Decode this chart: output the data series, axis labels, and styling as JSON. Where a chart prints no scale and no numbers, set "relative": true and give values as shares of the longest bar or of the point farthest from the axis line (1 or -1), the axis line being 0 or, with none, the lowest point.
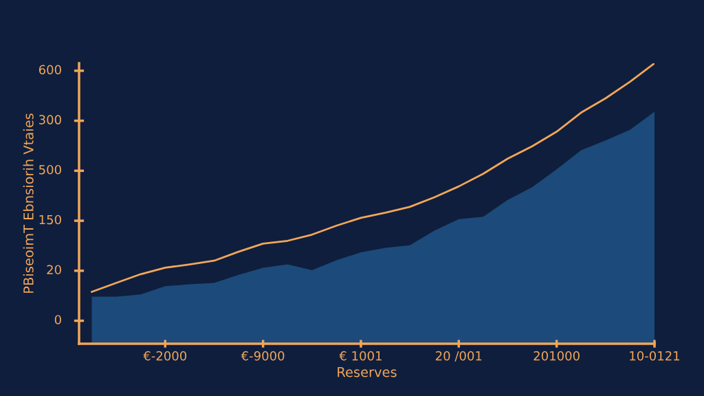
{
  "chart_data": {
    "type": "line",
    "xlabel": "Reserves",
    "ylabel": "PBiseoimT Ebnsiorih Vtaies",
    "relative": true,
    "annotations": [
      "0",
      "20",
      "150",
      "500",
      "300",
      "600"
    ],
    "categories": [
      null,
      null,
      null,
      "€-2000",
      null,
      null,
      null,
      "€-9000",
      null,
      null,
      null,
      "€ 1001",
      null,
      null,
      null,
      "20 /001",
      null,
      null,
      null,
      "201000",
      null,
      null,
      null,
      "10-0121"
    ],
    "grid": false,
    "series": [
      {
        "type": "area",
        "color": "#1c4a7a",
        "values": [
          0.168,
          0.168,
          0.176,
          0.205,
          0.212,
          0.217,
          0.246,
          0.271,
          0.283,
          0.262,
          0.298,
          0.326,
          0.342,
          0.351,
          0.403,
          0.444,
          0.453,
          0.513,
          0.558,
          0.622,
          0.69,
          0.725,
          0.763,
          0.827
        ]
      },
      {
        "color": "#f2a65a",
        "values": [
          0.185,
          0.217,
          0.248,
          0.271,
          0.283,
          0.296,
          0.328,
          0.357,
          0.367,
          0.389,
          0.421,
          0.449,
          0.467,
          0.488,
          0.522,
          0.561,
          0.606,
          0.66,
          0.704,
          0.756,
          0.824,
          0.875,
          0.934,
          1.0
        ]
      }
    ]
  }
}
